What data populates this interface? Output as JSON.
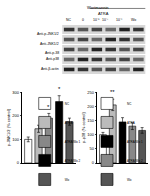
{
  "blot": {
    "header": "Wortmannin",
    "subheader": "ATRA",
    "lanes": [
      "NC",
      "0",
      "10⁻⁸",
      "10⁻⁷",
      "10⁻⁶",
      "Wo"
    ],
    "rows": [
      "Anti-p-JNK1/2",
      "Anti-JNK1/2",
      "Anti-p-38",
      "Anti-p38",
      "Anti-β-actin"
    ]
  },
  "chart_data": [
    {
      "type": "bar",
      "y_label": "p-JNK1/2 (% control)",
      "categories": [
        "NC",
        "ATRA",
        "ATRA/Wo 1",
        "ATRA/Wo 2",
        "Wo"
      ],
      "values": [
        100,
        145,
        190,
        260,
        175
      ],
      "errors": [
        10,
        15,
        20,
        25,
        15
      ],
      "colors": [
        "#ffffff",
        "#bbbbbb",
        "#888888",
        "#000000",
        "#555555"
      ],
      "ylim": [
        0,
        300
      ],
      "yticks": [
        0,
        100,
        200,
        300
      ],
      "tick_labels": "y",
      "legend": "top-left",
      "annotations": [
        {
          "x": 3,
          "y": 292,
          "text": "*"
        },
        {
          "x": 2,
          "y": 215,
          "text": "*"
        }
      ]
    },
    {
      "type": "bar",
      "y_label": "p-p38 (% control)",
      "categories": [
        "NC",
        "ATRA",
        "ATRA/Wo 1",
        "ATRA/Wo 2",
        "Wo"
      ],
      "values": [
        100,
        205,
        145,
        130,
        115
      ],
      "errors": [
        8,
        20,
        15,
        12,
        10
      ],
      "colors": [
        "#ffffff",
        "#bbbbbb",
        "#000000",
        "#888888",
        "#555555"
      ],
      "ylim": [
        0,
        250
      ],
      "yticks": [
        0,
        50,
        100,
        150,
        200,
        250
      ],
      "tick_labels": "y",
      "legend": "top-right",
      "annotations": [
        {
          "x": 1,
          "y": 232,
          "text": "**"
        }
      ]
    }
  ]
}
